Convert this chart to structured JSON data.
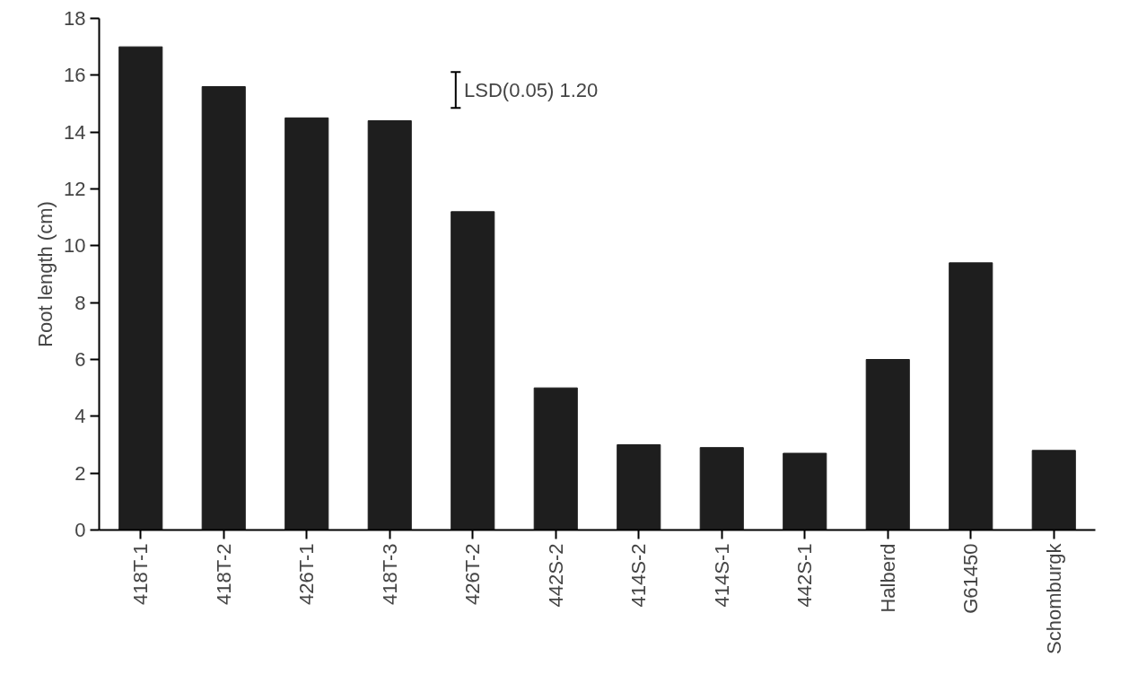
{
  "chart_data": {
    "type": "bar",
    "ylabel": "Root length (cm)",
    "categories": [
      "418T-1",
      "418T-2",
      "426T-1",
      "418T-3",
      "426T-2",
      "442S-2",
      "414S-2",
      "414S-1",
      "442S-1",
      "Halberd",
      "G61450",
      "Schomburgk"
    ],
    "values": [
      17.0,
      15.6,
      14.5,
      14.4,
      11.2,
      5.0,
      3.0,
      2.9,
      2.7,
      6.0,
      9.4,
      2.8
    ],
    "color": "#1e1e1e",
    "ylim": [
      0,
      18
    ],
    "yticks": [
      0,
      2,
      4,
      6,
      8,
      10,
      12,
      14,
      16,
      18
    ],
    "grid": false,
    "annotations": [
      "LSD(0.05) 1.20"
    ]
  }
}
